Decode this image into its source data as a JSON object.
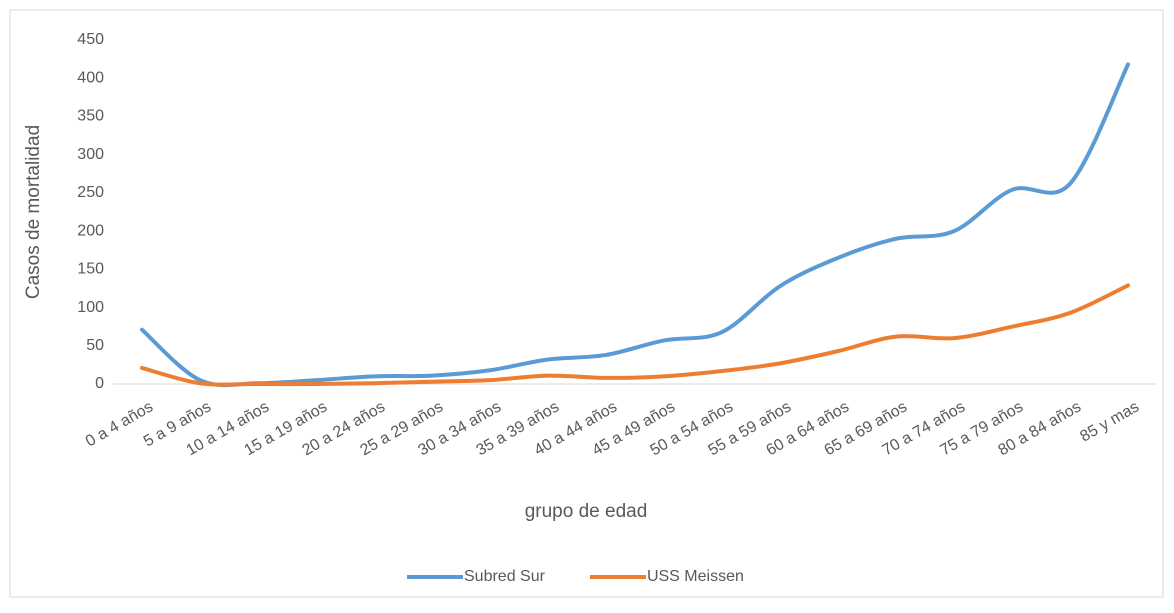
{
  "chart_data": {
    "type": "line",
    "x_label": "grupo de edad",
    "y_label": "Casos de mortalidad",
    "categories": [
      "0 a 4 años",
      "5 a 9 años",
      "10 a 14 años",
      "15 a 19 años",
      "20 a 24 años",
      "25 a 29 años",
      "30 a 34 años",
      "35 a 39 años",
      "40 a 44 años",
      "45 a 49 años",
      "50 a 54 años",
      "55 a 59 años",
      "60 a 64 años",
      "65 a 69 años",
      "70 a 74 años",
      "75 a 79 años",
      "80 a 84 años",
      "85 y mas"
    ],
    "series": [
      {
        "name": "Subred Sur",
        "color": "#5b9bd5",
        "values": [
          71,
          5,
          1,
          5,
          10,
          11,
          18,
          32,
          38,
          57,
          68,
          128,
          165,
          190,
          200,
          254,
          262,
          418
        ]
      },
      {
        "name": "USS Meissen",
        "color": "#ed7d31",
        "values": [
          21,
          1,
          0,
          0,
          1,
          3,
          5,
          11,
          8,
          10,
          17,
          27,
          43,
          62,
          60,
          75,
          93,
          129
        ]
      }
    ],
    "ylim": [
      0,
      450
    ],
    "yticks": [
      0,
      50,
      100,
      150,
      200,
      250,
      300,
      350,
      400,
      450
    ],
    "grid": false,
    "legend": "bottom"
  }
}
